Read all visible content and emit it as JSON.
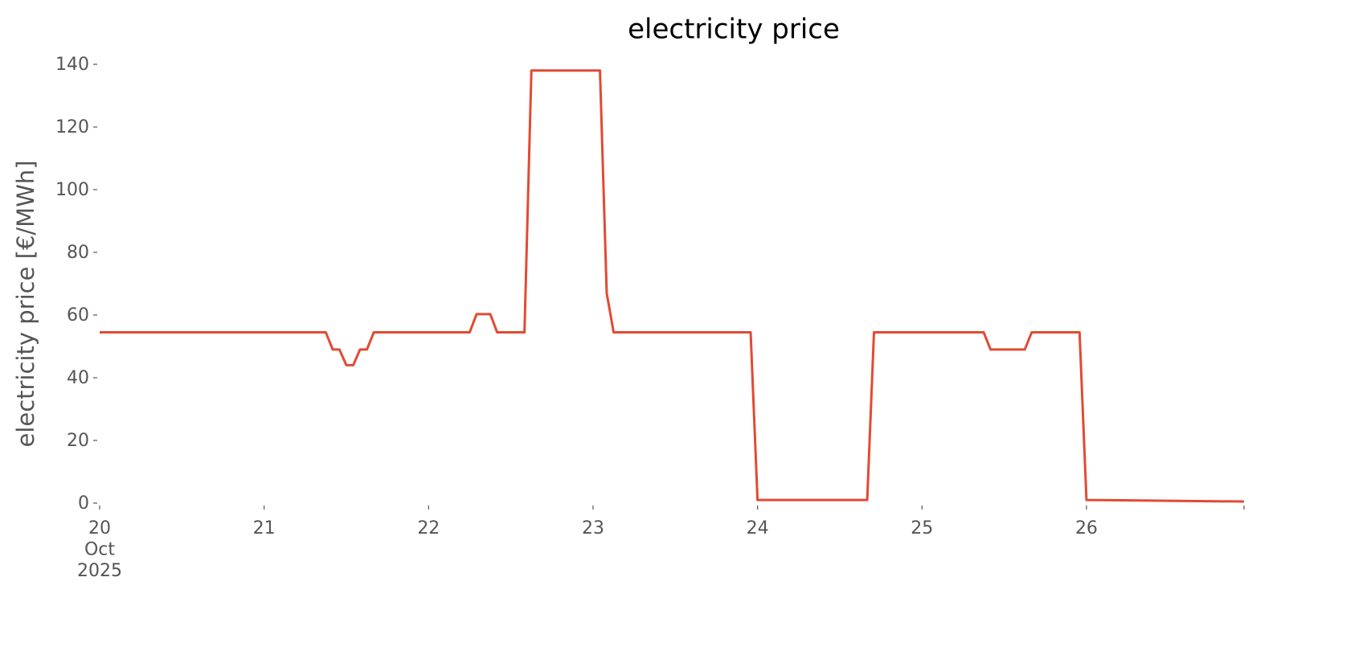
{
  "chart_data": {
    "type": "line",
    "title": "electricity price",
    "ylabel": "electricity price [€/MWh]",
    "x": [
      20,
      21.375,
      21.417,
      21.458,
      21.5,
      21.542,
      21.583,
      21.625,
      21.667,
      22.25,
      22.292,
      22.375,
      22.417,
      22.583,
      22.625,
      23.042,
      23.083,
      23.125,
      23.958,
      24.0,
      24.667,
      24.708,
      25.375,
      25.417,
      25.625,
      25.667,
      25.958,
      26.0,
      26.958
    ],
    "values": [
      54.5,
      54.5,
      49,
      49,
      44,
      44,
      49,
      49,
      54.5,
      54.5,
      60.3,
      60.3,
      54.5,
      54.5,
      138,
      138,
      67,
      54.5,
      54.5,
      1,
      1,
      54.5,
      54.5,
      49,
      49,
      54.5,
      54.5,
      1,
      0.5
    ],
    "color": "#E24A33",
    "xlim": [
      20,
      26.958
    ],
    "xticks": [
      {
        "value": 20,
        "label": "20\nOct\n2025"
      },
      21,
      22,
      23,
      24,
      25,
      26
    ],
    "ylim": [
      0,
      140
    ],
    "yticks": [
      0,
      20,
      40,
      60,
      80,
      100,
      120,
      140
    ],
    "grid": false
  }
}
